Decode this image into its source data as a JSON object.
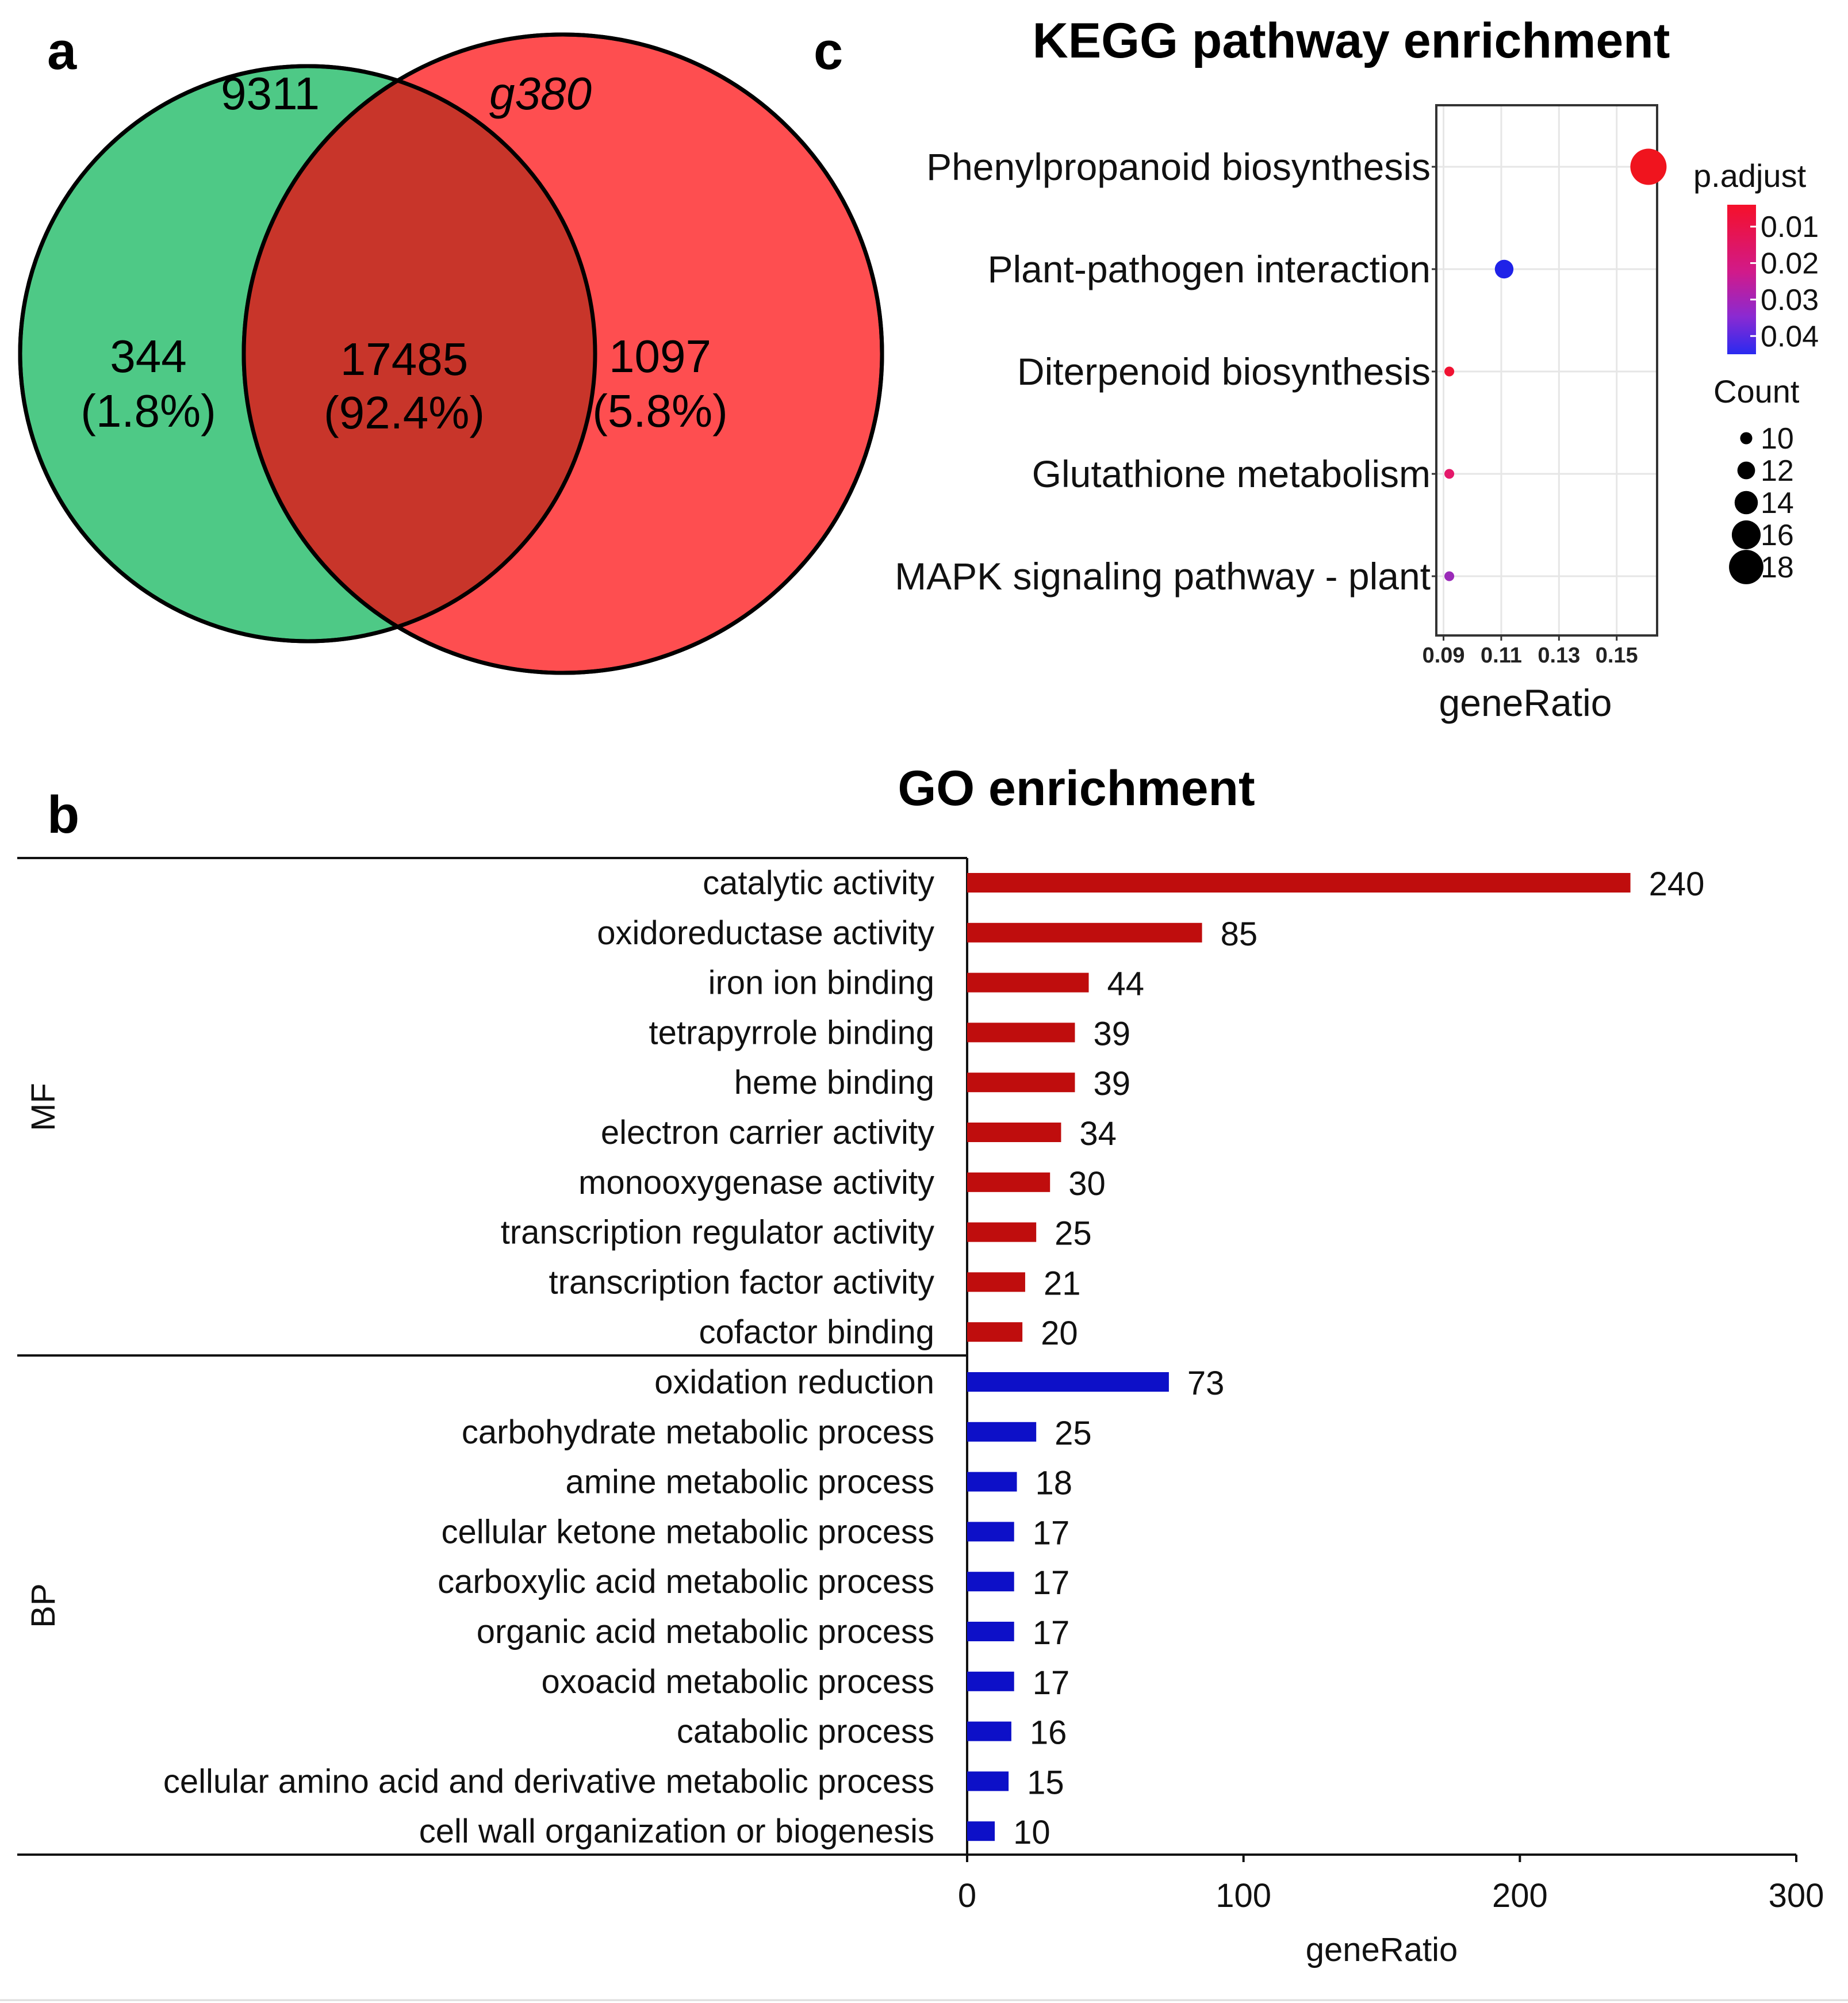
{
  "panels": {
    "a": "a",
    "b": "b",
    "c": "c"
  },
  "venn": {
    "left_set": "9311",
    "right_set": "g380",
    "left_only": "344",
    "left_only_pct": "(1.8%)",
    "overlap": "17485",
    "overlap_pct": "(92.4%)",
    "right_only": "1097",
    "right_only_pct": "(5.8%)",
    "colors": {
      "left": "#4ec986",
      "right": "#fe4e50",
      "overlap": "#c8352a"
    }
  },
  "kegg": {
    "title": "KEGG pathway enrichment",
    "xlabel": "geneRatio",
    "xticks": [
      "0.09",
      "0.11",
      "0.13",
      "0.15"
    ],
    "legend_color_title": "p.adjust",
    "legend_color_ticks": [
      "0.01",
      "0.02",
      "0.03",
      "0.04"
    ],
    "legend_size_title": "Count",
    "legend_size_ticks": [
      "10",
      "12",
      "14",
      "16",
      "18"
    ]
  },
  "go": {
    "title": "GO enrichment",
    "xlabel": "geneRatio",
    "xticks": [
      "0",
      "100",
      "200",
      "300"
    ],
    "group_labels": [
      "MF",
      "BP"
    ]
  },
  "chart_data": [
    {
      "type": "venn",
      "sets": [
        "9311",
        "g380"
      ],
      "regions": [
        {
          "region": "9311 only",
          "count": 344,
          "percent": 1.8
        },
        {
          "region": "both",
          "count": 17485,
          "percent": 92.4
        },
        {
          "region": "g380 only",
          "count": 1097,
          "percent": 5.8
        }
      ]
    },
    {
      "type": "scatter",
      "title": "KEGG pathway enrichment",
      "xlabel": "geneRatio",
      "ylabel": "",
      "xlim": [
        0.0875,
        0.164
      ],
      "xticks": [
        0.09,
        0.11,
        0.13,
        0.15
      ],
      "grid": true,
      "legend_position": "right",
      "categories": [
        "Phenylpropanoid biosynthesis",
        "Plant-pathogen interaction",
        "Diterpenoid biosynthesis",
        "Glutathione metabolism",
        "MAPK signaling pathway - plant"
      ],
      "points": [
        {
          "term": "Phenylpropanoid biosynthesis",
          "geneRatio": 0.161,
          "count": 18,
          "p_adjust": 0.005,
          "color": "#f0141e"
        },
        {
          "term": "Plant-pathogen interaction",
          "geneRatio": 0.111,
          "count": 12,
          "p_adjust": 0.045,
          "color": "#1f22e8"
        },
        {
          "term": "Diterpenoid biosynthesis",
          "geneRatio": 0.092,
          "count": 9,
          "p_adjust": 0.008,
          "color": "#f01232"
        },
        {
          "term": "Glutathione metabolism",
          "geneRatio": 0.092,
          "count": 9,
          "p_adjust": 0.014,
          "color": "#e4186a"
        },
        {
          "term": "MAPK signaling pathway - plant",
          "geneRatio": 0.092,
          "count": 9,
          "p_adjust": 0.03,
          "color": "#9a2ab8"
        }
      ],
      "color_scale": {
        "title": "p.adjust",
        "low": "#f0102a",
        "high": "#2222ee",
        "ticks": [
          0.01,
          0.02,
          0.03,
          0.04
        ],
        "range": [
          0.004,
          0.045
        ]
      },
      "size_scale": {
        "title": "Count",
        "ticks": [
          10,
          12,
          14,
          16,
          18
        ]
      }
    },
    {
      "type": "bar",
      "orientation": "horizontal",
      "title": "GO enrichment",
      "xlabel": "geneRatio",
      "ylabel": "",
      "xlim": [
        0,
        300
      ],
      "xticks": [
        0,
        100,
        200,
        300
      ],
      "groups": [
        {
          "name": "MF",
          "color": "#bf0d0d",
          "categories": [
            "catalytic activity",
            "oxidoreductase activity",
            "iron ion binding",
            "tetrapyrrole binding",
            "heme binding",
            "electron carrier activity",
            "monooxygenase activity",
            "transcription regulator activity",
            "transcription factor activity",
            "cofactor binding"
          ],
          "values": [
            240,
            85,
            44,
            39,
            39,
            34,
            30,
            25,
            21,
            20
          ]
        },
        {
          "name": "BP",
          "color": "#0d10c8",
          "categories": [
            "oxidation reduction",
            "carbohydrate metabolic process",
            "amine metabolic process",
            "cellular ketone metabolic process",
            "carboxylic acid metabolic process",
            "organic acid metabolic process",
            "oxoacid metabolic process",
            "catabolic process",
            "cellular amino acid and derivative metabolic process",
            "cell wall organization or biogenesis"
          ],
          "values": [
            73,
            25,
            18,
            17,
            17,
            17,
            17,
            16,
            15,
            10
          ]
        }
      ]
    }
  ]
}
